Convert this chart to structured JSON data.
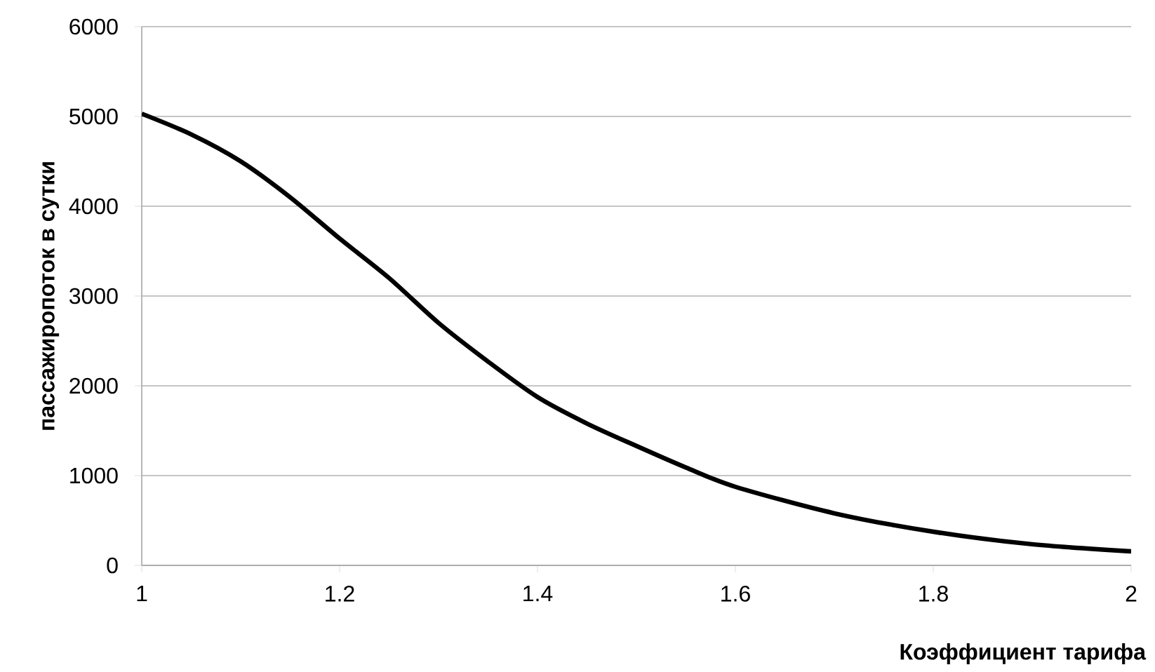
{
  "chart_data": {
    "type": "line",
    "xlabel": "Коэффициент тарифа",
    "ylabel": "пассажиропоток в сутки",
    "x": [
      1,
      1.05,
      1.1,
      1.15,
      1.2,
      1.25,
      1.3,
      1.35,
      1.4,
      1.45,
      1.5,
      1.55,
      1.6,
      1.7,
      1.8,
      1.9,
      2
    ],
    "series": [
      {
        "color": "#000000",
        "values": [
          5030,
          4800,
          4500,
          4100,
          3640,
          3200,
          2700,
          2270,
          1875,
          1580,
          1330,
          1090,
          875,
          580,
          375,
          235,
          156
        ]
      }
    ],
    "xlim": [
      1,
      2
    ],
    "ylim": [
      0,
      6000
    ],
    "xticks": [
      1,
      1.2,
      1.4,
      1.6,
      1.8,
      2
    ],
    "yticks": [
      0,
      1000,
      2000,
      3000,
      4000,
      5000,
      6000
    ],
    "grid": "y",
    "marker": "none",
    "line_style": "solid"
  }
}
